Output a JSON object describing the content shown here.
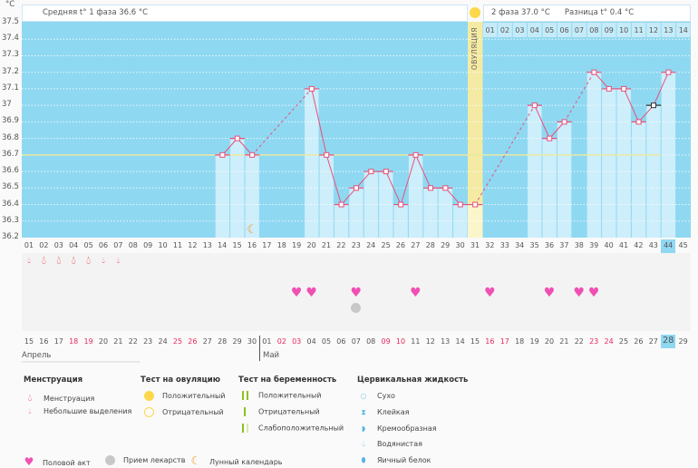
{
  "header": {
    "unit": "°C",
    "phase1": "Средняя t° 1 фаза 36.6 °C",
    "phase2": "2 фаза 37.0 °C",
    "diff": "Разница t° 0.4 °C",
    "ovulation": "ОВУЛЯЦИЯ"
  },
  "months": {
    "april": "Апрель",
    "may": "Май"
  },
  "colors": {
    "sky": "#8fd8f2",
    "bar": "#cdeefb",
    "line": "#e8507a",
    "coverline": "#e8eaa0",
    "ovulation": "#f5eaa3",
    "weekend": "#e8285a",
    "today": "#8fd8f2"
  },
  "chart_data": {
    "type": "line",
    "title": "",
    "ylabel": "°C",
    "ylim": [
      36.2,
      37.5
    ],
    "yticks": [
      "37.5",
      "37.4",
      "37.3",
      "37.2",
      "37.1",
      "37",
      "36.9",
      "36.8",
      "36.7",
      "36.6",
      "36.5",
      "36.4",
      "36.3",
      "36.2"
    ],
    "cycle_days": [
      "01",
      "02",
      "03",
      "04",
      "05",
      "06",
      "07",
      "08",
      "09",
      "10",
      "11",
      "12",
      "13",
      "14",
      "15",
      "16",
      "17",
      "18",
      "19",
      "20",
      "21",
      "22",
      "23",
      "24",
      "25",
      "26",
      "27",
      "28",
      "29",
      "30",
      "31",
      "32",
      "33",
      "34",
      "35",
      "36",
      "37",
      "38",
      "39",
      "40",
      "41",
      "42",
      "43",
      "44",
      "45"
    ],
    "dates": [
      "15",
      "16",
      "17",
      "18",
      "19",
      "20",
      "21",
      "22",
      "23",
      "24",
      "25",
      "26",
      "27",
      "28",
      "29",
      "30",
      "01",
      "02",
      "03",
      "04",
      "05",
      "06",
      "07",
      "08",
      "09",
      "10",
      "11",
      "12",
      "13",
      "14",
      "15",
      "16",
      "17",
      "18",
      "19",
      "20",
      "21",
      "22",
      "23",
      "24",
      "25",
      "26",
      "27",
      "28",
      "29"
    ],
    "weekend_dates_idx": [
      3,
      4,
      10,
      11,
      17,
      18,
      24,
      25,
      31,
      32,
      38,
      39
    ],
    "phase2_days": [
      "01",
      "02",
      "03",
      "04",
      "05",
      "06",
      "07",
      "08",
      "09",
      "10",
      "11",
      "12",
      "13",
      "14"
    ],
    "temperatures": [
      null,
      null,
      null,
      null,
      null,
      null,
      null,
      null,
      null,
      null,
      null,
      null,
      null,
      36.7,
      36.8,
      36.7,
      null,
      null,
      null,
      37.1,
      36.7,
      36.4,
      36.5,
      36.6,
      36.6,
      36.4,
      36.7,
      36.5,
      36.5,
      36.4,
      36.4,
      null,
      null,
      null,
      37.0,
      36.8,
      36.9,
      null,
      37.2,
      37.1,
      37.1,
      36.9,
      37.0,
      37.2,
      null
    ],
    "excluded_day": 43,
    "coverline": 36.7,
    "ovulation_day": 31,
    "today_day": 44,
    "menstruation": {
      "1": "small",
      "2": "big",
      "3": "big",
      "4": "big",
      "5": "big",
      "6": "small",
      "7": "small"
    },
    "intercourse_days": [
      19,
      20,
      23,
      27,
      32,
      36,
      38,
      39
    ],
    "medication_days": [
      23
    ],
    "moon_days": [
      16
    ]
  },
  "legend": {
    "menstruation": {
      "title": "Менструация",
      "items": [
        "Менструация",
        "Небольшие выделения"
      ]
    },
    "ovulation_test": {
      "title": "Тест на овуляцию",
      "items": [
        "Положительный",
        "Отрицательный"
      ]
    },
    "pregnancy_test": {
      "title": "Тест на беременность",
      "items": [
        "Положительный",
        "Отрицательный",
        "Слабоположительный"
      ]
    },
    "cervical": {
      "title": "Цервикальная жидкость",
      "items": [
        "Сухо",
        "Клейкая",
        "Кремообразная",
        "Водянистая",
        "Яичный белок"
      ]
    },
    "other": [
      "Половой акт",
      "Прием лекарств",
      "Лунный календарь"
    ]
  }
}
